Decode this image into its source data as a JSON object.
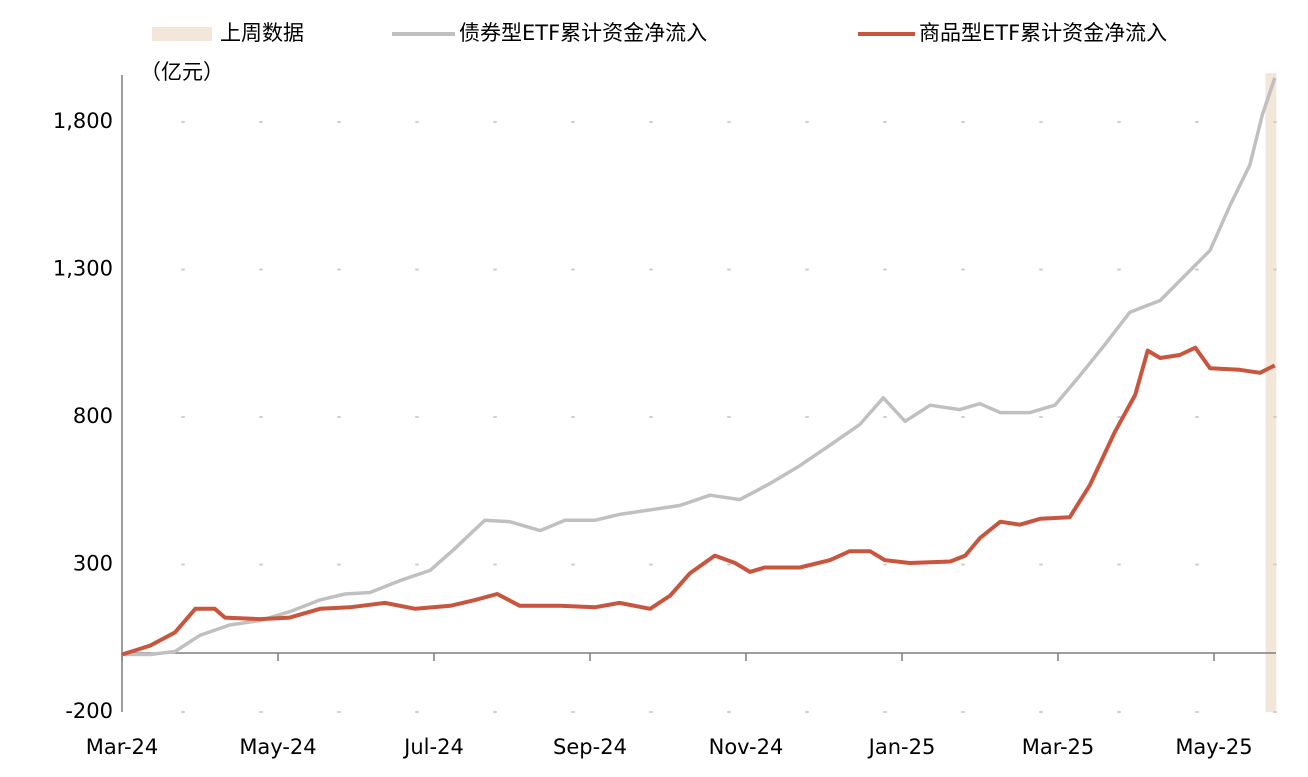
{
  "chart_data": {
    "type": "line",
    "y_unit": "（亿元）",
    "xlim": [
      0,
      15
    ],
    "ylim": [
      -200,
      2000
    ],
    "xticks": [
      {
        "value": 0,
        "label": "Mar-24"
      },
      {
        "value": 2,
        "label": "May-24"
      },
      {
        "value": 4,
        "label": "Jul-24"
      },
      {
        "value": 6,
        "label": "Sep-24"
      },
      {
        "value": 8,
        "label": "Nov-24"
      },
      {
        "value": 10,
        "label": "Jan-25"
      },
      {
        "value": 12,
        "label": "Mar-25"
      },
      {
        "value": 14,
        "label": "May-25"
      }
    ],
    "yticks": [
      -200,
      300,
      800,
      {
        "value": 1300,
        "label": "1,300"
      },
      {
        "value": 1800,
        "label": "1,800"
      }
    ],
    "grid": true,
    "highlight": {
      "name": "上周数据",
      "color": "#f3e7da",
      "x": [
        14.66,
        14.8
      ]
    },
    "series": [
      {
        "name": "债券型ETF累计资金净流入",
        "color": "#c0c0c0",
        "x": [
          0,
          0.36,
          0.68,
          1.0,
          1.38,
          1.77,
          2.15,
          2.54,
          2.86,
          3.18,
          3.56,
          3.95,
          4.27,
          4.65,
          4.97,
          5.36,
          5.68,
          6.06,
          6.38,
          6.77,
          7.15,
          7.54,
          7.92,
          8.31,
          8.69,
          9.08,
          9.46,
          9.76,
          10.04,
          10.36,
          10.74,
          11.0,
          11.26,
          11.64,
          11.96,
          12.28,
          12.6,
          12.92,
          13.31,
          13.63,
          13.95,
          14.21,
          14.46,
          14.62,
          14.78
        ],
        "values": [
          -5,
          -5,
          5,
          60,
          95,
          110,
          140,
          180,
          200,
          205,
          245,
          280,
          355,
          450,
          445,
          415,
          450,
          450,
          470,
          485,
          500,
          535,
          520,
          575,
          635,
          705,
          775,
          865,
          785,
          840,
          825,
          845,
          815,
          815,
          840,
          940,
          1045,
          1155,
          1195,
          1280,
          1365,
          1520,
          1655,
          1825,
          1950
        ]
      },
      {
        "name": "商品型ETF累计资金净流入",
        "color": "#c8553d",
        "x": [
          0,
          0.36,
          0.68,
          0.94,
          1.19,
          1.32,
          1.77,
          2.15,
          2.54,
          2.92,
          3.37,
          3.76,
          4.21,
          4.53,
          4.81,
          5.1,
          5.62,
          6.06,
          6.38,
          6.77,
          7.03,
          7.28,
          7.6,
          7.86,
          8.05,
          8.24,
          8.69,
          9.08,
          9.33,
          9.59,
          9.78,
          10.1,
          10.62,
          10.81,
          11.0,
          11.26,
          11.51,
          11.77,
          12.15,
          12.41,
          12.73,
          12.99,
          13.15,
          13.31,
          13.56,
          13.76,
          13.95,
          14.33,
          14.59,
          14.78
        ],
        "values": [
          -5,
          25,
          70,
          150,
          150,
          120,
          115,
          120,
          150,
          155,
          170,
          150,
          160,
          180,
          200,
          160,
          160,
          155,
          170,
          150,
          195,
          270,
          330,
          305,
          275,
          290,
          290,
          315,
          345,
          345,
          315,
          305,
          310,
          330,
          390,
          445,
          435,
          455,
          460,
          570,
          750,
          875,
          1025,
          1000,
          1010,
          1035,
          965,
          960,
          950,
          975
        ]
      }
    ]
  }
}
